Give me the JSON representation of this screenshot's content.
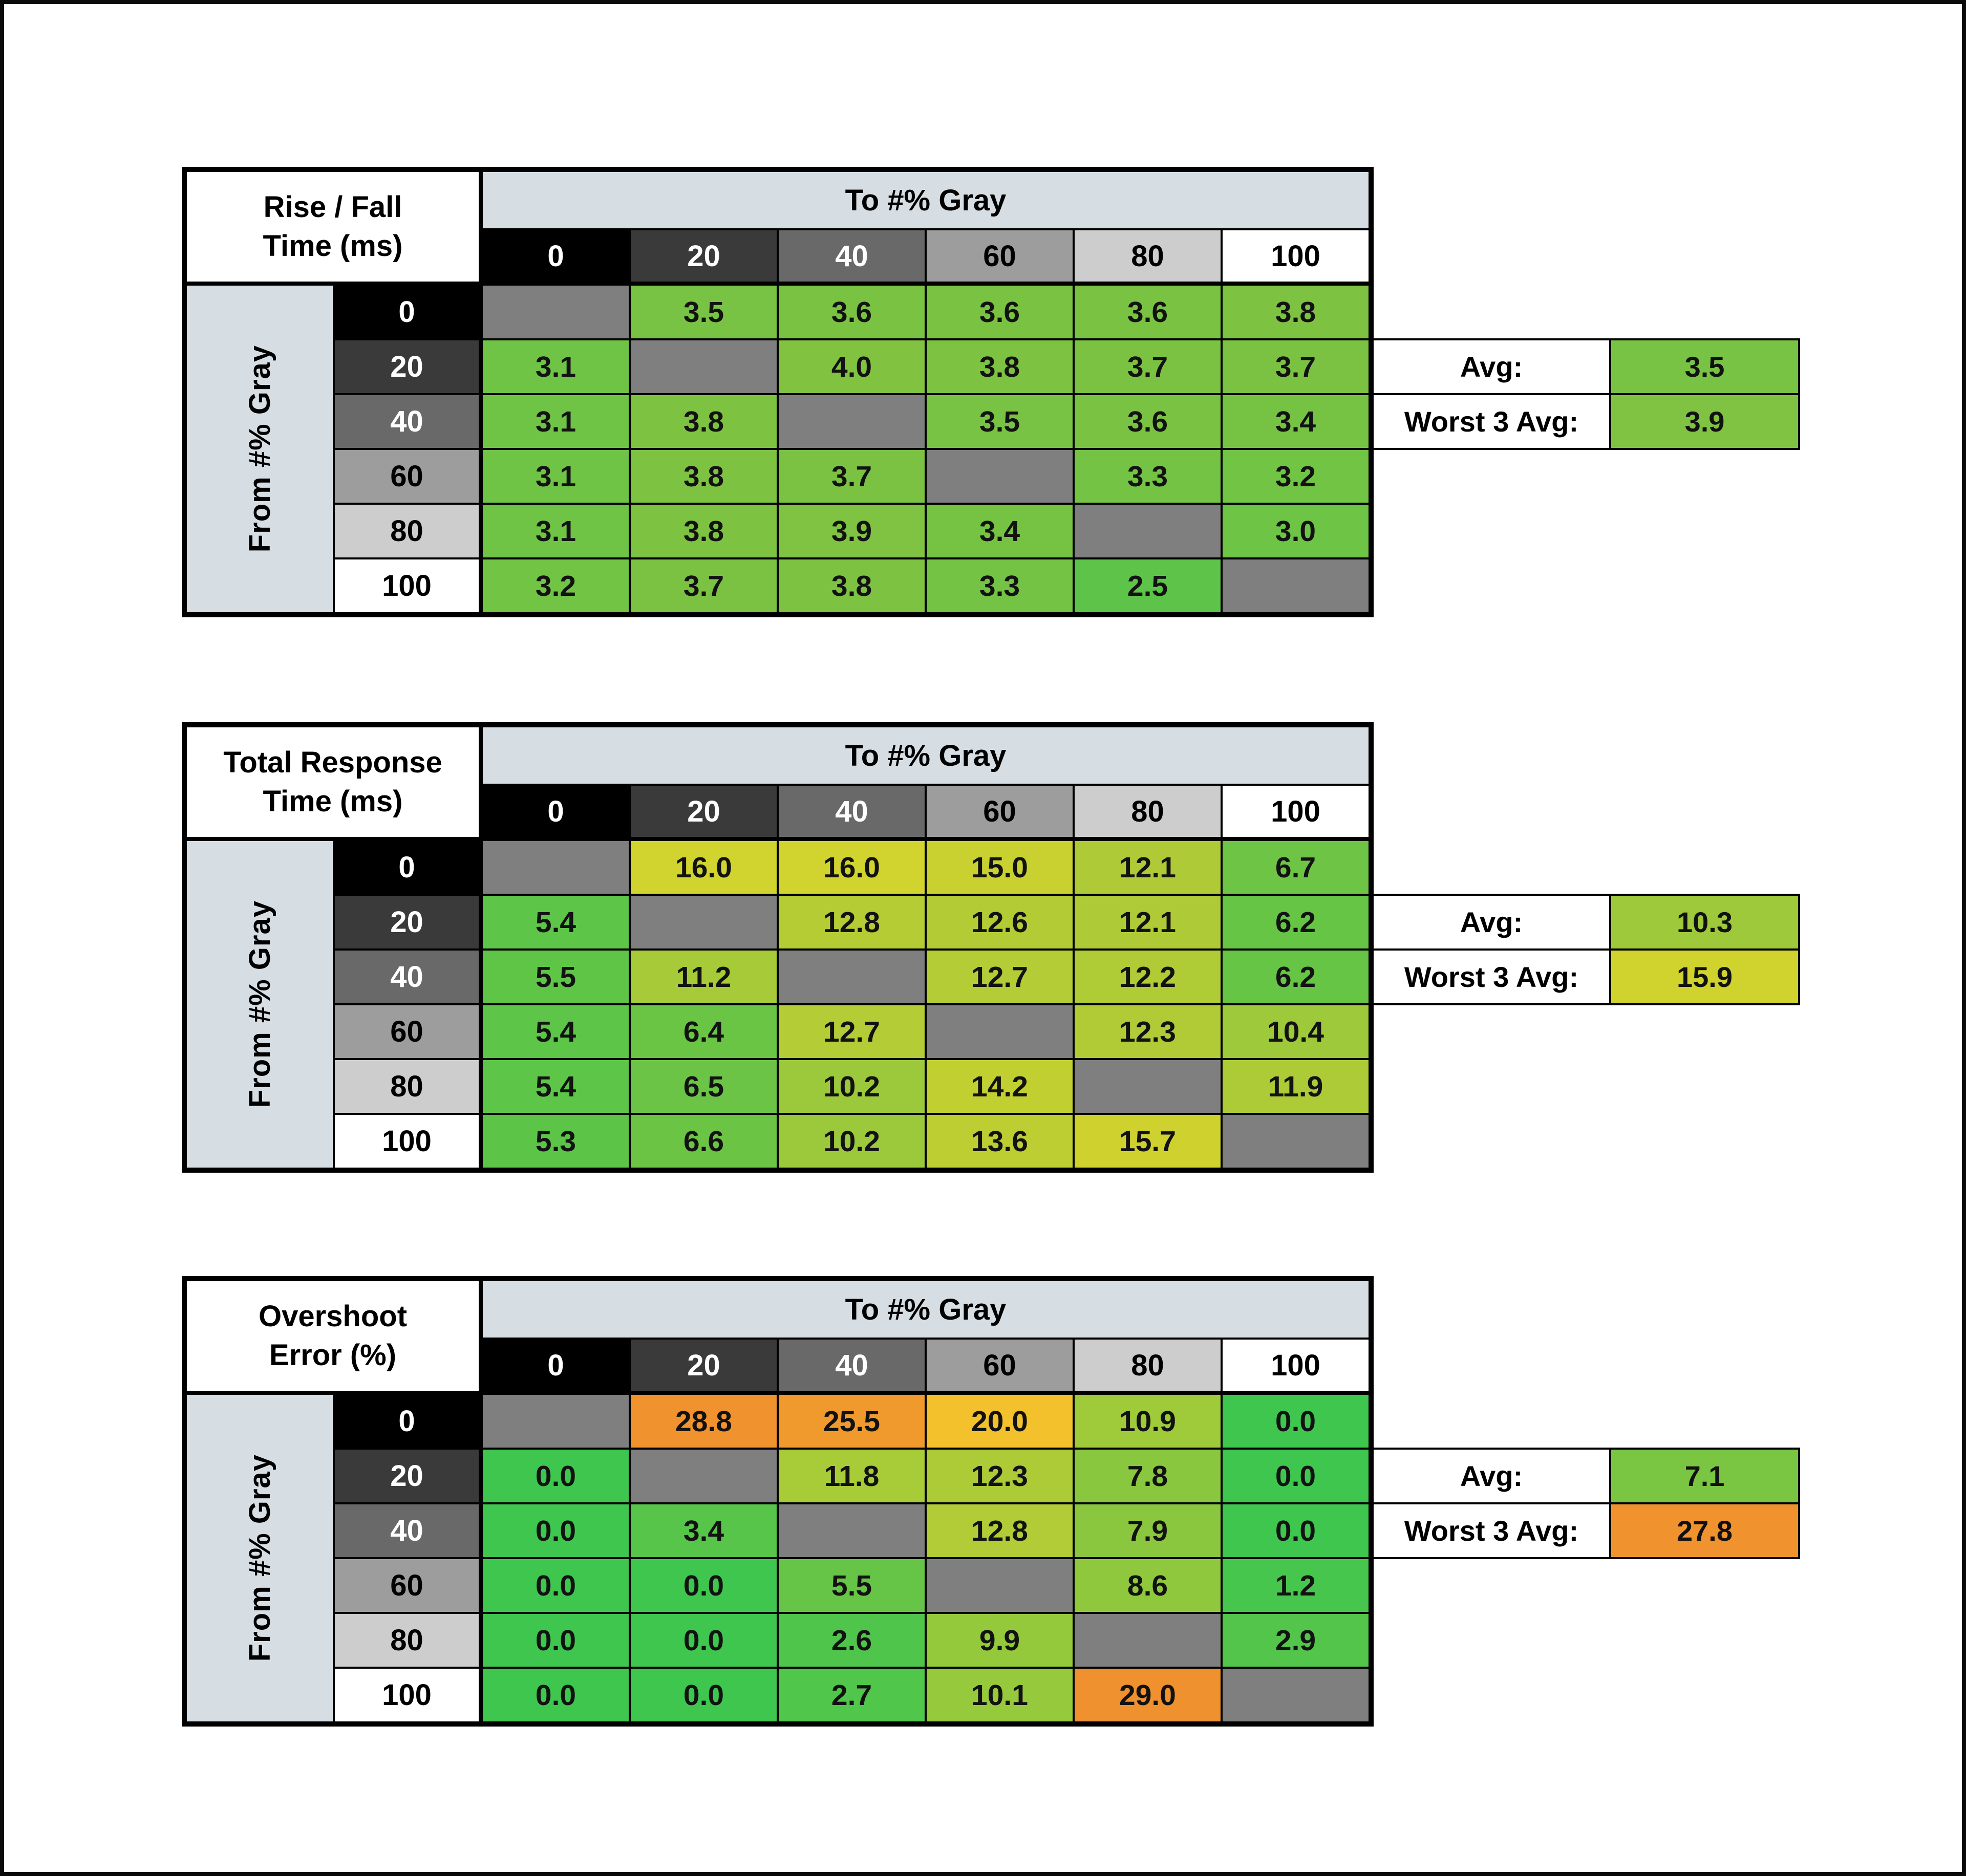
{
  "palette": {
    "page_bg": "#FFFFFF",
    "frame": "#0B0B0B",
    "grid_line": "#000000",
    "axis_header_bg": "#D6DEE4",
    "diagonal_gray": "#7F7F7F",
    "cell_text": "#121212",
    "gray_scale_bgs": [
      "#000000",
      "#3A3A3A",
      "#696969",
      "#9D9D9D",
      "#CDCDCD",
      "#FFFFFF"
    ],
    "gray_scale_fgs": [
      "#FFFFFF",
      "#FFFFFF",
      "#FFFFFF",
      "#000000",
      "#000000",
      "#000000"
    ],
    "scale_green": "#3EC64F",
    "scale_yellow": "#D1D32E",
    "scale_amber": "#F2C12B",
    "scale_orange": "#F0922E"
  },
  "chart_data": [
    {
      "type": "heatmap",
      "title_line1": "Rise / Fall",
      "title_line2": "Time (ms)",
      "col_axis_label": "To #% Gray",
      "row_axis_label": "From #% Gray",
      "col_labels": [
        "0",
        "20",
        "40",
        "60",
        "80",
        "100"
      ],
      "rows": [
        {
          "label": "0",
          "cells": [
            {
              "v": "",
              "c": "#7F7F7F"
            },
            {
              "v": "3.5",
              "c": "#78C343"
            },
            {
              "v": "3.6",
              "c": "#7AC342"
            },
            {
              "v": "3.6",
              "c": "#7AC342"
            },
            {
              "v": "3.6",
              "c": "#7AC342"
            },
            {
              "v": "3.8",
              "c": "#7EC242"
            }
          ]
        },
        {
          "label": "20",
          "cells": [
            {
              "v": "3.1",
              "c": "#70C445"
            },
            {
              "v": "",
              "c": "#7F7F7F"
            },
            {
              "v": "4.0",
              "c": "#82C241"
            },
            {
              "v": "3.8",
              "c": "#7EC242"
            },
            {
              "v": "3.7",
              "c": "#7CC242"
            },
            {
              "v": "3.7",
              "c": "#7CC242"
            }
          ]
        },
        {
          "label": "40",
          "cells": [
            {
              "v": "3.1",
              "c": "#70C445"
            },
            {
              "v": "3.8",
              "c": "#7EC242"
            },
            {
              "v": "",
              "c": "#7F7F7F"
            },
            {
              "v": "3.5",
              "c": "#78C343"
            },
            {
              "v": "3.6",
              "c": "#7AC342"
            },
            {
              "v": "3.4",
              "c": "#76C343"
            }
          ]
        },
        {
          "label": "60",
          "cells": [
            {
              "v": "3.1",
              "c": "#70C445"
            },
            {
              "v": "3.8",
              "c": "#7EC242"
            },
            {
              "v": "3.7",
              "c": "#7CC242"
            },
            {
              "v": "",
              "c": "#7F7F7F"
            },
            {
              "v": "3.3",
              "c": "#74C344"
            },
            {
              "v": "3.2",
              "c": "#72C444"
            }
          ]
        },
        {
          "label": "80",
          "cells": [
            {
              "v": "3.1",
              "c": "#70C445"
            },
            {
              "v": "3.8",
              "c": "#7EC242"
            },
            {
              "v": "3.9",
              "c": "#80C241"
            },
            {
              "v": "3.4",
              "c": "#76C343"
            },
            {
              "v": "",
              "c": "#7F7F7F"
            },
            {
              "v": "3.0",
              "c": "#6EC445"
            }
          ]
        },
        {
          "label": "100",
          "cells": [
            {
              "v": "3.2",
              "c": "#72C444"
            },
            {
              "v": "3.7",
              "c": "#7CC242"
            },
            {
              "v": "3.8",
              "c": "#7EC242"
            },
            {
              "v": "3.3",
              "c": "#74C344"
            },
            {
              "v": "2.5",
              "c": "#5EC449"
            },
            {
              "v": "",
              "c": "#7F7F7F"
            }
          ]
        }
      ],
      "summary": {
        "avg_label": "Avg:",
        "avg": {
          "v": "3.5",
          "c": "#78C343"
        },
        "worst_label": "Worst 3 Avg:",
        "worst": {
          "v": "3.9",
          "c": "#80C241"
        }
      }
    },
    {
      "type": "heatmap",
      "title_line1": "Total Response",
      "title_line2": "Time (ms)",
      "col_axis_label": "To #% Gray",
      "row_axis_label": "From #% Gray",
      "col_labels": [
        "0",
        "20",
        "40",
        "60",
        "80",
        "100"
      ],
      "rows": [
        {
          "label": "0",
          "cells": [
            {
              "v": "",
              "c": "#7F7F7F"
            },
            {
              "v": "16.0",
              "c": "#D1D32E"
            },
            {
              "v": "16.0",
              "c": "#D1D32E"
            },
            {
              "v": "15.0",
              "c": "#C8D130"
            },
            {
              "v": "12.1",
              "c": "#AECB37"
            },
            {
              "v": "6.7",
              "c": "#6DC445"
            }
          ]
        },
        {
          "label": "20",
          "cells": [
            {
              "v": "5.4",
              "c": "#5DC548"
            },
            {
              "v": "",
              "c": "#7F7F7F"
            },
            {
              "v": "12.8",
              "c": "#B5CC35"
            },
            {
              "v": "12.6",
              "c": "#B3CC35"
            },
            {
              "v": "12.1",
              "c": "#AECB37"
            },
            {
              "v": "6.2",
              "c": "#67C546"
            }
          ]
        },
        {
          "label": "40",
          "cells": [
            {
              "v": "5.5",
              "c": "#5FC547"
            },
            {
              "v": "11.2",
              "c": "#A6CA38"
            },
            {
              "v": "",
              "c": "#7F7F7F"
            },
            {
              "v": "12.7",
              "c": "#B4CC35"
            },
            {
              "v": "12.2",
              "c": "#AFCB36"
            },
            {
              "v": "6.2",
              "c": "#67C546"
            }
          ]
        },
        {
          "label": "60",
          "cells": [
            {
              "v": "5.4",
              "c": "#5DC548"
            },
            {
              "v": "6.4",
              "c": "#6AC545"
            },
            {
              "v": "12.7",
              "c": "#B4CC35"
            },
            {
              "v": "",
              "c": "#7F7F7F"
            },
            {
              "v": "12.3",
              "c": "#B0CB36"
            },
            {
              "v": "10.4",
              "c": "#9EC93A"
            }
          ]
        },
        {
          "label": "80",
          "cells": [
            {
              "v": "5.4",
              "c": "#5DC548"
            },
            {
              "v": "6.5",
              "c": "#6BC445"
            },
            {
              "v": "10.2",
              "c": "#9CC93B"
            },
            {
              "v": "14.2",
              "c": "#C2CF31"
            },
            {
              "v": "",
              "c": "#7F7F7F"
            },
            {
              "v": "11.9",
              "c": "#ACCB37"
            }
          ]
        },
        {
          "label": "100",
          "cells": [
            {
              "v": "5.3",
              "c": "#5CC548"
            },
            {
              "v": "6.6",
              "c": "#6CC445"
            },
            {
              "v": "10.2",
              "c": "#9CC93B"
            },
            {
              "v": "13.6",
              "c": "#BDCE32"
            },
            {
              "v": "15.7",
              "c": "#CFD22E"
            },
            {
              "v": "",
              "c": "#7F7F7F"
            }
          ]
        }
      ],
      "summary": {
        "avg_label": "Avg:",
        "avg": {
          "v": "10.3",
          "c": "#9DC93B"
        },
        "worst_label": "Worst 3 Avg:",
        "worst": {
          "v": "15.9",
          "c": "#D0D22E"
        }
      }
    },
    {
      "type": "heatmap",
      "title_line1": "Overshoot",
      "title_line2": "Error (%)",
      "col_axis_label": "To #% Gray",
      "row_axis_label": "From #% Gray",
      "col_labels": [
        "0",
        "20",
        "40",
        "60",
        "80",
        "100"
      ],
      "rows": [
        {
          "label": "0",
          "cells": [
            {
              "v": "",
              "c": "#7F7F7F"
            },
            {
              "v": "28.8",
              "c": "#F0922E"
            },
            {
              "v": "25.5",
              "c": "#F09A2D"
            },
            {
              "v": "20.0",
              "c": "#F2C12B"
            },
            {
              "v": "10.9",
              "c": "#9FCA3A"
            },
            {
              "v": "0.0",
              "c": "#3EC64F"
            }
          ]
        },
        {
          "label": "20",
          "cells": [
            {
              "v": "0.0",
              "c": "#3EC64F"
            },
            {
              "v": "",
              "c": "#7F7F7F"
            },
            {
              "v": "11.8",
              "c": "#A8CB38"
            },
            {
              "v": "12.3",
              "c": "#ACCB37"
            },
            {
              "v": "7.8",
              "c": "#89C73E"
            },
            {
              "v": "0.0",
              "c": "#3EC64F"
            }
          ]
        },
        {
          "label": "40",
          "cells": [
            {
              "v": "0.0",
              "c": "#3EC64F"
            },
            {
              "v": "3.4",
              "c": "#56C549"
            },
            {
              "v": "",
              "c": "#7F7F7F"
            },
            {
              "v": "12.8",
              "c": "#B1CC36"
            },
            {
              "v": "7.9",
              "c": "#8AC73E"
            },
            {
              "v": "0.0",
              "c": "#3EC64F"
            }
          ]
        },
        {
          "label": "60",
          "cells": [
            {
              "v": "0.0",
              "c": "#3EC64F"
            },
            {
              "v": "0.0",
              "c": "#3EC64F"
            },
            {
              "v": "5.5",
              "c": "#66C546"
            },
            {
              "v": "",
              "c": "#7F7F7F"
            },
            {
              "v": "8.6",
              "c": "#8FC83D"
            },
            {
              "v": "1.2",
              "c": "#46C64D"
            }
          ]
        },
        {
          "label": "80",
          "cells": [
            {
              "v": "0.0",
              "c": "#3EC64F"
            },
            {
              "v": "0.0",
              "c": "#3EC64F"
            },
            {
              "v": "2.6",
              "c": "#4FC64B"
            },
            {
              "v": "9.9",
              "c": "#95C93C"
            },
            {
              "v": "",
              "c": "#7F7F7F"
            },
            {
              "v": "2.9",
              "c": "#52C54A"
            }
          ]
        },
        {
          "label": "100",
          "cells": [
            {
              "v": "0.0",
              "c": "#3EC64F"
            },
            {
              "v": "0.0",
              "c": "#3EC64F"
            },
            {
              "v": "2.7",
              "c": "#50C64B"
            },
            {
              "v": "10.1",
              "c": "#97C93C"
            },
            {
              "v": "29.0",
              "c": "#EF912E"
            },
            {
              "v": "",
              "c": "#7F7F7F"
            }
          ]
        }
      ],
      "summary": {
        "avg_label": "Avg:",
        "avg": {
          "v": "7.1",
          "c": "#7AC541"
        },
        "worst_label": "Worst 3 Avg:",
        "worst": {
          "v": "27.8",
          "c": "#F0932E"
        }
      }
    }
  ]
}
